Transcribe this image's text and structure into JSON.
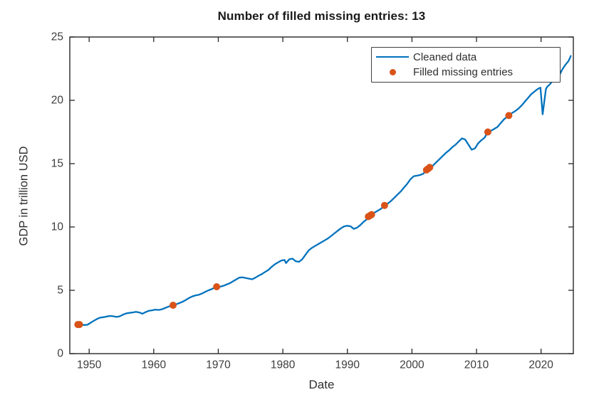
{
  "chart_data": {
    "type": "line",
    "title": "Number of filled missing entries: 13",
    "filled_missing_count": 13,
    "xlabel": "Date",
    "ylabel": "GDP in trillion USD",
    "xlim": [
      1947,
      2025
    ],
    "ylim": [
      0,
      25
    ],
    "xticks": [
      1950,
      1960,
      1970,
      1980,
      1990,
      2000,
      2010,
      2020
    ],
    "yticks": [
      0,
      5,
      10,
      15,
      20,
      25
    ],
    "grid": false,
    "legend": {
      "position": "top-right",
      "entries": [
        "Cleaned data",
        "Filled missing entries"
      ]
    },
    "colors": {
      "line": "#0072BD",
      "marker": "#D95319",
      "axis": "#262626",
      "tick_label": "#3d3d3d"
    },
    "series": [
      {
        "name": "Cleaned data",
        "type": "line",
        "color": "#0072BD",
        "points": [
          [
            1948.25,
            2.3
          ],
          [
            1948.75,
            2.29
          ],
          [
            1949.25,
            2.26
          ],
          [
            1949.75,
            2.28
          ],
          [
            1950.25,
            2.45
          ],
          [
            1950.75,
            2.6
          ],
          [
            1951.25,
            2.75
          ],
          [
            1951.75,
            2.85
          ],
          [
            1952.25,
            2.88
          ],
          [
            1952.75,
            2.93
          ],
          [
            1953.25,
            2.98
          ],
          [
            1953.75,
            2.95
          ],
          [
            1954.25,
            2.9
          ],
          [
            1954.75,
            2.95
          ],
          [
            1955.25,
            3.08
          ],
          [
            1955.75,
            3.18
          ],
          [
            1956.25,
            3.22
          ],
          [
            1956.75,
            3.25
          ],
          [
            1957.25,
            3.3
          ],
          [
            1957.75,
            3.25
          ],
          [
            1958.25,
            3.15
          ],
          [
            1958.75,
            3.28
          ],
          [
            1959.25,
            3.38
          ],
          [
            1959.75,
            3.42
          ],
          [
            1960.25,
            3.48
          ],
          [
            1960.75,
            3.45
          ],
          [
            1961.25,
            3.5
          ],
          [
            1961.75,
            3.6
          ],
          [
            1962.25,
            3.7
          ],
          [
            1962.75,
            3.78
          ],
          [
            1963.0,
            3.82
          ],
          [
            1963.5,
            3.9
          ],
          [
            1964.0,
            4.0
          ],
          [
            1964.5,
            4.1
          ],
          [
            1965.0,
            4.25
          ],
          [
            1965.5,
            4.4
          ],
          [
            1966.0,
            4.52
          ],
          [
            1966.5,
            4.6
          ],
          [
            1967.0,
            4.65
          ],
          [
            1967.5,
            4.75
          ],
          [
            1968.0,
            4.88
          ],
          [
            1968.5,
            5.0
          ],
          [
            1969.0,
            5.1
          ],
          [
            1969.75,
            5.28
          ],
          [
            1970.25,
            5.28
          ],
          [
            1970.75,
            5.35
          ],
          [
            1971.25,
            5.45
          ],
          [
            1971.75,
            5.55
          ],
          [
            1972.25,
            5.7
          ],
          [
            1972.75,
            5.85
          ],
          [
            1973.25,
            6.0
          ],
          [
            1973.75,
            6.02
          ],
          [
            1974.25,
            5.97
          ],
          [
            1974.75,
            5.92
          ],
          [
            1975.25,
            5.87
          ],
          [
            1975.75,
            6.0
          ],
          [
            1976.25,
            6.15
          ],
          [
            1976.75,
            6.28
          ],
          [
            1977.25,
            6.45
          ],
          [
            1977.75,
            6.6
          ],
          [
            1978.25,
            6.85
          ],
          [
            1978.75,
            7.05
          ],
          [
            1979.25,
            7.2
          ],
          [
            1979.75,
            7.35
          ],
          [
            1980.25,
            7.4
          ],
          [
            1980.5,
            7.15
          ],
          [
            1981.0,
            7.45
          ],
          [
            1981.5,
            7.5
          ],
          [
            1982.0,
            7.3
          ],
          [
            1982.5,
            7.25
          ],
          [
            1983.0,
            7.45
          ],
          [
            1983.5,
            7.8
          ],
          [
            1984.0,
            8.15
          ],
          [
            1984.5,
            8.35
          ],
          [
            1985.0,
            8.5
          ],
          [
            1985.5,
            8.65
          ],
          [
            1986.0,
            8.8
          ],
          [
            1986.5,
            8.95
          ],
          [
            1987.0,
            9.1
          ],
          [
            1987.5,
            9.3
          ],
          [
            1988.0,
            9.5
          ],
          [
            1988.5,
            9.7
          ],
          [
            1989.0,
            9.9
          ],
          [
            1989.5,
            10.05
          ],
          [
            1990.0,
            10.1
          ],
          [
            1990.5,
            10.05
          ],
          [
            1991.0,
            9.85
          ],
          [
            1991.5,
            9.95
          ],
          [
            1992.0,
            10.15
          ],
          [
            1992.5,
            10.4
          ],
          [
            1993.0,
            10.6
          ],
          [
            1993.25,
            10.82
          ],
          [
            1993.5,
            10.9
          ],
          [
            1993.75,
            10.98
          ],
          [
            1994.25,
            11.15
          ],
          [
            1994.75,
            11.3
          ],
          [
            1995.25,
            11.45
          ],
          [
            1995.75,
            11.7
          ],
          [
            1996.25,
            11.85
          ],
          [
            1996.75,
            12.05
          ],
          [
            1997.25,
            12.3
          ],
          [
            1997.75,
            12.55
          ],
          [
            1998.25,
            12.8
          ],
          [
            1998.75,
            13.1
          ],
          [
            1999.25,
            13.4
          ],
          [
            1999.75,
            13.75
          ],
          [
            2000.25,
            14.0
          ],
          [
            2000.75,
            14.05
          ],
          [
            2001.25,
            14.1
          ],
          [
            2001.75,
            14.2
          ],
          [
            2002.25,
            14.5
          ],
          [
            2002.75,
            14.7
          ],
          [
            2003.25,
            14.85
          ],
          [
            2003.75,
            15.1
          ],
          [
            2004.25,
            15.35
          ],
          [
            2004.75,
            15.6
          ],
          [
            2005.25,
            15.85
          ],
          [
            2005.75,
            16.05
          ],
          [
            2006.25,
            16.3
          ],
          [
            2006.75,
            16.5
          ],
          [
            2007.25,
            16.75
          ],
          [
            2007.75,
            17.0
          ],
          [
            2008.25,
            16.9
          ],
          [
            2008.75,
            16.5
          ],
          [
            2009.25,
            16.1
          ],
          [
            2009.75,
            16.2
          ],
          [
            2010.25,
            16.6
          ],
          [
            2010.75,
            16.85
          ],
          [
            2011.25,
            17.05
          ],
          [
            2011.75,
            17.5
          ],
          [
            2012.25,
            17.6
          ],
          [
            2012.75,
            17.75
          ],
          [
            2013.25,
            17.9
          ],
          [
            2013.75,
            18.2
          ],
          [
            2014.25,
            18.5
          ],
          [
            2015.0,
            18.8
          ],
          [
            2015.5,
            19.0
          ],
          [
            2016.0,
            19.15
          ],
          [
            2016.5,
            19.35
          ],
          [
            2017.0,
            19.6
          ],
          [
            2017.5,
            19.9
          ],
          [
            2018.0,
            20.2
          ],
          [
            2018.5,
            20.5
          ],
          [
            2019.0,
            20.7
          ],
          [
            2019.5,
            20.9
          ],
          [
            2019.9,
            21.0
          ],
          [
            2020.25,
            18.9
          ],
          [
            2020.75,
            20.9
          ],
          [
            2021.0,
            21.1
          ],
          [
            2021.25,
            21.2
          ],
          [
            2021.75,
            21.5
          ],
          [
            2022.25,
            21.6
          ],
          [
            2022.75,
            21.9
          ],
          [
            2023.25,
            22.4
          ],
          [
            2023.75,
            22.8
          ],
          [
            2024.25,
            23.1
          ],
          [
            2024.6,
            23.5
          ]
        ]
      },
      {
        "name": "Filled missing entries",
        "type": "scatter",
        "color": "#D95319",
        "points": [
          [
            1948.25,
            2.3
          ],
          [
            1948.5,
            2.3
          ],
          [
            1963.0,
            3.82
          ],
          [
            1969.75,
            5.28
          ],
          [
            1993.25,
            10.82
          ],
          [
            1993.5,
            10.9
          ],
          [
            1993.75,
            10.98
          ],
          [
            1995.75,
            11.7
          ],
          [
            2002.25,
            14.5
          ],
          [
            2002.5,
            14.6
          ],
          [
            2002.75,
            14.7
          ],
          [
            2011.75,
            17.5
          ],
          [
            2015.0,
            18.8
          ]
        ]
      }
    ]
  }
}
